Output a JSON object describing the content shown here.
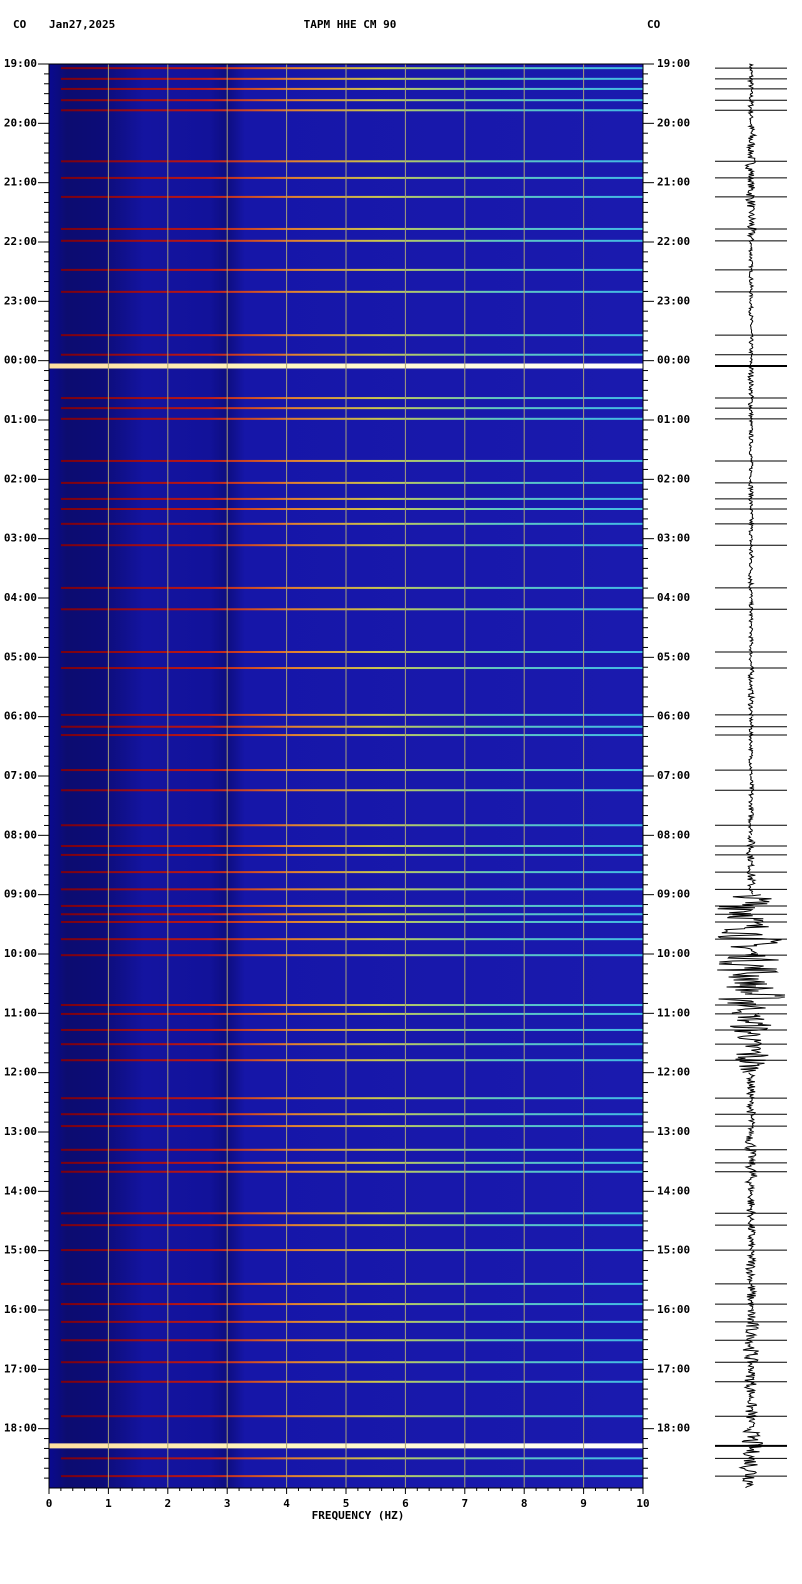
{
  "chart_data": {
    "type": "spectrogram",
    "network": "CO",
    "network_right": "CO",
    "date": "Jan27,2025",
    "title": "TAPM HHE CM 90",
    "xlabel": "FREQUENCY (HZ)",
    "xlim": [
      0,
      10
    ],
    "xticks": [
      0,
      1,
      2,
      3,
      4,
      5,
      6,
      7,
      8,
      9,
      10
    ],
    "ylim": [
      0,
      24
    ],
    "yticks": [
      {
        "value": 0,
        "label": "19:00"
      },
      {
        "value": 1,
        "label": "20:00"
      },
      {
        "value": 2,
        "label": "21:00"
      },
      {
        "value": 3,
        "label": "22:00"
      },
      {
        "value": 4,
        "label": "23:00"
      },
      {
        "value": 5,
        "label": "00:00"
      },
      {
        "value": 6,
        "label": "01:00"
      },
      {
        "value": 7,
        "label": "02:00"
      },
      {
        "value": 8,
        "label": "03:00"
      },
      {
        "value": 9,
        "label": "04:00"
      },
      {
        "value": 10,
        "label": "05:00"
      },
      {
        "value": 11,
        "label": "06:00"
      },
      {
        "value": 12,
        "label": "07:00"
      },
      {
        "value": 13,
        "label": "08:00"
      },
      {
        "value": 14,
        "label": "09:00"
      },
      {
        "value": 15,
        "label": "10:00"
      },
      {
        "value": 16,
        "label": "11:00"
      },
      {
        "value": 17,
        "label": "12:00"
      },
      {
        "value": 18,
        "label": "13:00"
      },
      {
        "value": 19,
        "label": "14:00"
      },
      {
        "value": 20,
        "label": "15:00"
      },
      {
        "value": 21,
        "label": "16:00"
      },
      {
        "value": 22,
        "label": "17:00"
      },
      {
        "value": 23,
        "label": "18:00"
      }
    ],
    "grid": true,
    "streaks": [
      0.07,
      0.25,
      0.42,
      0.61,
      0.78,
      1.64,
      1.92,
      2.24,
      2.78,
      2.98,
      3.47,
      3.84,
      4.57,
      4.9,
      5.63,
      5.8,
      5.98,
      6.69,
      7.06,
      7.33,
      7.5,
      7.75,
      8.11,
      8.83,
      9.19,
      9.91,
      10.18,
      10.97,
      11.17,
      11.31,
      11.9,
      12.24,
      12.83,
      13.18,
      13.33,
      13.62,
      13.91,
      14.19,
      14.33,
      14.46,
      14.75,
      15.02,
      15.86,
      16.01,
      16.28,
      16.52,
      16.79,
      17.43,
      17.7,
      17.9,
      18.3,
      18.52,
      18.67,
      19.37,
      19.57,
      19.99,
      20.56,
      20.9,
      21.2,
      21.51,
      21.88,
      22.21,
      22.79,
      23.5,
      23.8
    ],
    "strong_streaks": [
      5.09,
      23.29
    ],
    "trace_envelope": [
      0.05,
      0.12,
      0.12,
      0.03,
      0.03,
      0.05,
      0.03,
      0.04,
      0.05,
      0.03,
      0.05,
      0.03,
      0.05,
      0.1,
      0.9,
      1.0,
      0.6,
      0.1,
      0.15,
      0.1,
      0.12,
      0.2,
      0.15,
      0.3
    ]
  }
}
